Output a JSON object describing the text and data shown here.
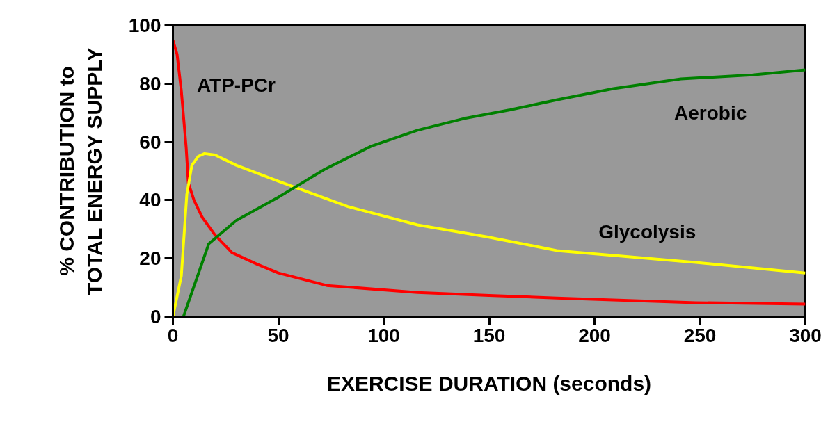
{
  "chart_data": {
    "type": "line",
    "xlabel": "EXERCISE DURATION (seconds)",
    "ylabel": "% CONTRIBUTION to\nTOTAL ENERGY SUPPLY",
    "xlim": [
      0,
      300
    ],
    "ylim": [
      0,
      100
    ],
    "xticks": [
      0,
      50,
      100,
      150,
      200,
      250,
      300
    ],
    "yticks": [
      0,
      20,
      40,
      60,
      80,
      100
    ],
    "grid": false,
    "legend": false,
    "series": [
      {
        "name": "ATP-PCr",
        "color": "#ff0000",
        "x": [
          0,
          2,
          4,
          6.3,
          7.3,
          10,
          14,
          20,
          28,
          40,
          50,
          73,
          116,
          150,
          182,
          248,
          300
        ],
        "values": [
          95,
          90,
          77.5,
          58,
          46,
          40,
          34,
          28,
          22,
          18,
          15,
          10.7,
          8.3,
          7.3,
          6.4,
          4.8,
          4.3
        ]
      },
      {
        "name": "Glycolysis",
        "color": "#ffff00",
        "x": [
          0,
          4,
          6.6,
          9,
          12,
          15,
          20,
          30,
          50,
          83,
          116,
          149,
          182,
          248,
          300
        ],
        "values": [
          0,
          14,
          42,
          52,
          55,
          56,
          55.5,
          52,
          46.5,
          37.8,
          31.5,
          27.4,
          22.7,
          18.6,
          15
        ]
      },
      {
        "name": "Aerobic",
        "color": "#008000",
        "x": [
          5,
          17,
          30,
          50,
          61,
          72,
          94,
          116,
          138,
          160,
          182,
          209,
          241,
          275,
          300
        ],
        "values": [
          0,
          25,
          33,
          41,
          45.8,
          50.6,
          58.5,
          64,
          68,
          71,
          74.4,
          78.3,
          81.6,
          83,
          84.7
        ]
      }
    ]
  }
}
